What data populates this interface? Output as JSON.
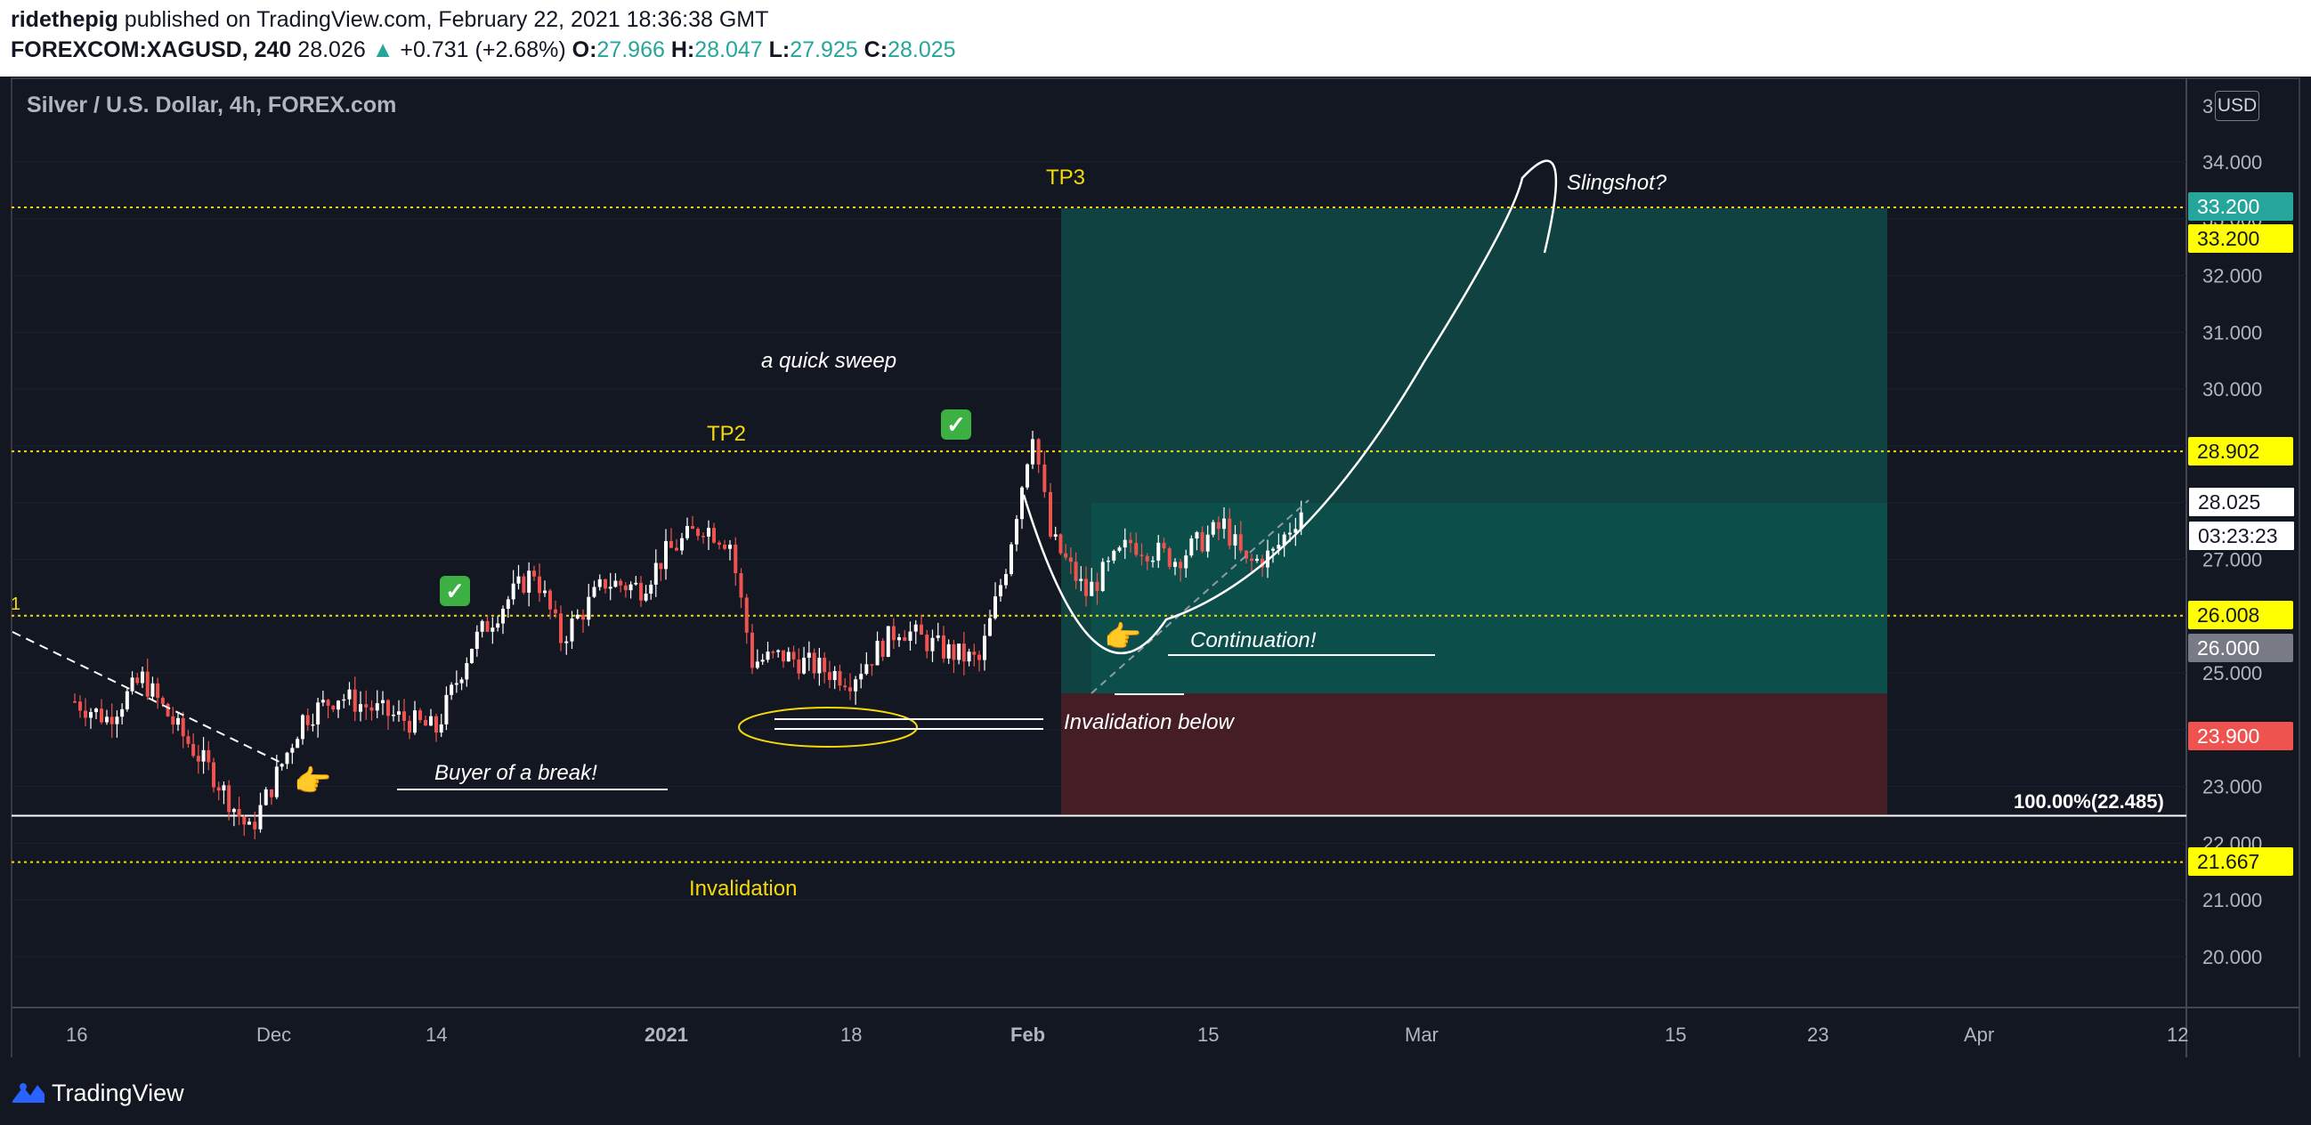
{
  "header": {
    "author": "ridethepig",
    "published": "published on TradingView.com, February 22, 2021 18:36:38 GMT",
    "symbol": "FOREXCOM:XAGUSD, 240",
    "last": "28.026",
    "change": "+0.731 (+2.68%)",
    "o_label": "O:",
    "o_value": "27.966",
    "h_label": "H:",
    "h_value": "28.047",
    "l_label": "L:",
    "l_value": "27.925",
    "c_label": "C:",
    "c_value": "28.025"
  },
  "pane_title": "Silver / U.S. Dollar, 4h, FOREX.com",
  "currency_button": "USD",
  "branding": "TradingView",
  "annotations": {
    "tp3": "TP3",
    "tp2": "TP2",
    "slingshot": "Slingshot?",
    "quick_sweep": "a quick sweep",
    "continuation": "Continuation!",
    "invalidation_below": "Invalidation below",
    "buyer_break": "Buyer of a break!",
    "invalidation": "Invalidation",
    "fib_level": "100.00%(22.485)",
    "left_edge_label": "1"
  },
  "price_tags": {
    "target": "33.200",
    "target_line": "33.200",
    "tp2_line": "28.902",
    "last_price": "28.025",
    "countdown": "03:23:23",
    "entry_line": "26.008",
    "entry_box": "26.000",
    "stop": "23.900",
    "invalidation_line": "21.667"
  },
  "colors": {
    "background": "#131722",
    "up": "#26a69a",
    "down": "#ef5350",
    "target_zone": "#0f4a45",
    "stop_zone": "#4a1e26",
    "level_yellow": "#f5d90a",
    "grid": "#1e2230"
  },
  "chart_data": {
    "type": "candlestick",
    "title": "Silver / U.S. Dollar, 4h, FOREX.com",
    "symbol": "FOREXCOM:XAGUSD",
    "y_ticks": [
      "3",
      "34.000",
      "33.000",
      "32.000",
      "31.000",
      "30.000",
      "29.000",
      "28.000",
      "27.000",
      "26.000",
      "25.000",
      "24.000",
      "23.000",
      "22.000",
      "21.000",
      "20.000"
    ],
    "x_ticks": [
      "16",
      "Dec",
      "14",
      "2021",
      "18",
      "Feb",
      "15",
      "Mar",
      "15",
      "23",
      "Apr",
      "12"
    ],
    "ylim": [
      19.1,
      35.6
    ],
    "horizontal_levels": [
      {
        "value": 33.2,
        "style": "dotted",
        "color": "#f5d90a"
      },
      {
        "value": 28.902,
        "style": "dotted",
        "color": "#f5d90a"
      },
      {
        "value": 26.008,
        "style": "dotted",
        "color": "#f5d90a"
      },
      {
        "value": 22.485,
        "style": "solid",
        "color": "#ffffff"
      },
      {
        "value": 21.667,
        "style": "dotted",
        "color": "#f5d90a"
      }
    ],
    "position": {
      "entry": 26.0,
      "target": 33.2,
      "stop": 23.9,
      "current": 28.025
    },
    "price_path": [
      {
        "x": "16",
        "close": 24.5
      },
      {
        "x": "Nov 19",
        "close": 24.2
      },
      {
        "x": "Nov 22",
        "close": 24.9
      },
      {
        "x": "Nov 25",
        "close": 24.0
      },
      {
        "x": "Nov 28",
        "close": 23.2
      },
      {
        "x": "Nov 30",
        "close": 22.2
      },
      {
        "x": "Dec",
        "close": 23.0
      },
      {
        "x": "Dec 4",
        "close": 24.2
      },
      {
        "x": "Dec 7",
        "close": 24.6
      },
      {
        "x": "Dec 10",
        "close": 24.3
      },
      {
        "x": "14",
        "close": 24.0
      },
      {
        "x": "Dec 16",
        "close": 25.5
      },
      {
        "x": "Dec 18",
        "close": 26.2
      },
      {
        "x": "Dec 21",
        "close": 26.8
      },
      {
        "x": "Dec 23",
        "close": 25.6
      },
      {
        "x": "Dec 28",
        "close": 26.6
      },
      {
        "x": "Dec 31",
        "close": 26.5
      },
      {
        "x": "2021",
        "close": 27.1
      },
      {
        "x": "Jan 5",
        "close": 27.6
      },
      {
        "x": "Jan 7",
        "close": 27.3
      },
      {
        "x": "Jan 8",
        "close": 25.2
      },
      {
        "x": "Jan 12",
        "close": 25.3
      },
      {
        "x": "18",
        "close": 24.9
      },
      {
        "x": "Jan 21",
        "close": 25.8
      },
      {
        "x": "Jan 25",
        "close": 25.4
      },
      {
        "x": "Jan 28",
        "close": 25.2
      },
      {
        "x": "Jan 29",
        "close": 26.9
      },
      {
        "x": "Feb",
        "close": 29.3
      },
      {
        "x": "Feb 2",
        "close": 27.4
      },
      {
        "x": "Feb 4",
        "close": 26.4
      },
      {
        "x": "Feb 8",
        "close": 27.3
      },
      {
        "x": "Feb 11",
        "close": 27.0
      },
      {
        "x": "15",
        "close": 27.6
      },
      {
        "x": "Feb 17",
        "close": 26.9
      },
      {
        "x": "Feb 19",
        "close": 27.1
      },
      {
        "x": "Feb 22",
        "close": 28.025
      }
    ]
  }
}
